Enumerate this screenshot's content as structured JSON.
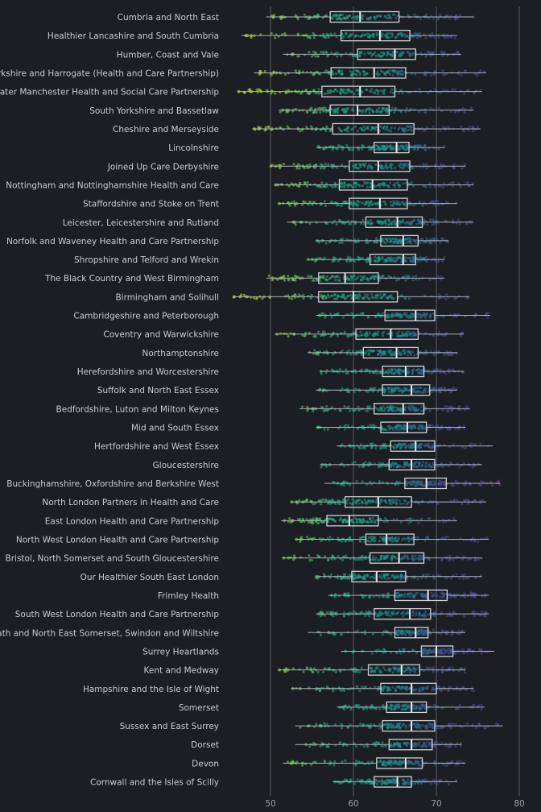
{
  "chart_data": {
    "type": "box",
    "title": "",
    "xlabel": "",
    "ylabel": "",
    "xlim": [
      45,
      81
    ],
    "xticks": [
      50,
      60,
      70,
      80
    ],
    "grid": true,
    "colors": {
      "low": "#d4e21a",
      "mid": "#21a585",
      "high": "#6a3d9a",
      "background": "#1b1e22"
    },
    "categories": [
      "Cumbria and North East",
      "Healthier Lancashire and South Cumbria",
      "Humber, Coast and Vale",
      "West Yorkshire and Harrogate (Health and Care Partnership)",
      "Greater Manchester Health and Social Care Partnership",
      "South Yorkshire and Bassetlaw",
      "Cheshire and Merseyside",
      "Lincolnshire",
      "Joined Up Care Derbyshire",
      "Nottingham and Nottinghamshire Health and Care",
      "Staffordshire and Stoke on Trent",
      "Leicester, Leicestershire and Rutland",
      "Norfolk and Waveney Health and Care Partnership",
      "Shropshire and Telford and Wrekin",
      "The Black Country and West Birmingham",
      "Birmingham and Solihull",
      "Cambridgeshire and Peterborough",
      "Coventry and Warwickshire",
      "Northamptonshire",
      "Herefordshire and Worcestershire",
      "Suffolk and North East Essex",
      "Bedfordshire, Luton and Milton Keynes",
      "Mid and South Essex",
      "Hertfordshire and West Essex",
      "Gloucestershire",
      "Buckinghamshire, Oxfordshire and Berkshire West",
      "North London Partners in Health and Care",
      "East London Health and Care Partnership",
      "North West London Health and Care Partnership",
      "Bristol, North Somerset and South Gloucestershire",
      "Our Healthier South East London",
      "Frimley Health",
      "South West London Health and Care Partnership",
      "Bath and North East Somerset, Swindon and Wiltshire",
      "Surrey Heartlands",
      "Kent and Medway",
      "Hampshire and the Isle of Wight",
      "Somerset",
      "Sussex and East Surrey",
      "Dorset",
      "Devon",
      "Cornwall and the Isles of Scilly"
    ],
    "boxes": [
      {
        "whislo": 49.5,
        "q1": 57.2,
        "med": 60.8,
        "q3": 65.5,
        "whishi": 74.5
      },
      {
        "whislo": 46.5,
        "q1": 58.5,
        "med": 63.2,
        "q3": 66.8,
        "whishi": 72.5
      },
      {
        "whislo": 51.5,
        "q1": 60.5,
        "med": 65.0,
        "q3": 67.5,
        "whishi": 73.0
      },
      {
        "whislo": 48.0,
        "q1": 57.3,
        "med": 62.5,
        "q3": 66.3,
        "whishi": 76.0
      },
      {
        "whislo": 46.0,
        "q1": 56.2,
        "med": 60.8,
        "q3": 65.0,
        "whishi": 75.5
      },
      {
        "whislo": 51.0,
        "q1": 57.2,
        "med": 60.5,
        "q3": 64.3,
        "whishi": 74.5
      },
      {
        "whislo": 47.8,
        "q1": 57.5,
        "med": 63.0,
        "q3": 67.3,
        "whishi": 75.3
      },
      {
        "whislo": 55.5,
        "q1": 62.5,
        "med": 65.2,
        "q3": 66.7,
        "whishi": 71.0
      },
      {
        "whislo": 50.0,
        "q1": 59.5,
        "med": 63.0,
        "q3": 66.8,
        "whishi": 73.5
      },
      {
        "whislo": 50.5,
        "q1": 58.3,
        "med": 62.3,
        "q3": 66.5,
        "whishi": 74.5
      },
      {
        "whislo": 51.0,
        "q1": 59.5,
        "med": 63.2,
        "q3": 66.5,
        "whishi": 72.5
      },
      {
        "whislo": 52.0,
        "q1": 61.5,
        "med": 65.3,
        "q3": 68.3,
        "whishi": 74.5
      },
      {
        "whislo": 55.5,
        "q1": 63.3,
        "med": 66.0,
        "q3": 67.8,
        "whishi": 71.5
      },
      {
        "whislo": 54.5,
        "q1": 62.0,
        "med": 66.0,
        "q3": 67.5,
        "whishi": 71.0
      },
      {
        "whislo": 49.5,
        "q1": 55.8,
        "med": 59.0,
        "q3": 63.0,
        "whishi": 71.0
      },
      {
        "whislo": 45.5,
        "q1": 55.8,
        "med": 60.0,
        "q3": 65.3,
        "whishi": 74.0
      },
      {
        "whislo": 55.5,
        "q1": 63.8,
        "med": 67.5,
        "q3": 69.8,
        "whishi": 76.5
      },
      {
        "whislo": 50.5,
        "q1": 60.3,
        "med": 64.5,
        "q3": 67.8,
        "whishi": 73.3
      },
      {
        "whislo": 54.5,
        "q1": 61.2,
        "med": 65.2,
        "q3": 67.8,
        "whishi": 72.5
      },
      {
        "whislo": 56.0,
        "q1": 63.5,
        "med": 66.3,
        "q3": 68.5,
        "whishi": 73.3
      },
      {
        "whislo": 55.5,
        "q1": 63.5,
        "med": 67.0,
        "q3": 69.2,
        "whishi": 72.5
      },
      {
        "whislo": 53.5,
        "q1": 62.5,
        "med": 66.0,
        "q3": 68.5,
        "whishi": 74.0
      },
      {
        "whislo": 55.5,
        "q1": 63.3,
        "med": 66.5,
        "q3": 68.8,
        "whishi": 73.5
      },
      {
        "whislo": 58.0,
        "q1": 64.5,
        "med": 67.5,
        "q3": 69.8,
        "whishi": 76.8
      },
      {
        "whislo": 56.0,
        "q1": 64.3,
        "med": 67.0,
        "q3": 69.8,
        "whishi": 75.5
      },
      {
        "whislo": 56.5,
        "q1": 66.2,
        "med": 68.8,
        "q3": 71.2,
        "whishi": 77.7
      },
      {
        "whislo": 52.5,
        "q1": 59.0,
        "med": 63.0,
        "q3": 67.0,
        "whishi": 76.0
      },
      {
        "whislo": 51.3,
        "q1": 56.8,
        "med": 59.5,
        "q3": 63.0,
        "whishi": 72.5
      },
      {
        "whislo": 53.0,
        "q1": 61.5,
        "med": 64.0,
        "q3": 67.3,
        "whishi": 76.3
      },
      {
        "whislo": 51.5,
        "q1": 62.0,
        "med": 65.5,
        "q3": 68.5,
        "whishi": 75.5
      },
      {
        "whislo": 55.5,
        "q1": 59.8,
        "med": 62.8,
        "q3": 66.3,
        "whishi": 75.5
      },
      {
        "whislo": 57.0,
        "q1": 65.0,
        "med": 69.0,
        "q3": 71.3,
        "whishi": 76.3
      },
      {
        "whislo": 55.5,
        "q1": 62.5,
        "med": 66.8,
        "q3": 69.3,
        "whishi": 76.3
      },
      {
        "whislo": 54.5,
        "q1": 65.0,
        "med": 67.5,
        "q3": 69.0,
        "whishi": 73.5
      },
      {
        "whislo": 58.5,
        "q1": 68.2,
        "med": 70.0,
        "q3": 72.0,
        "whishi": 77.0
      },
      {
        "whislo": 51.0,
        "q1": 61.8,
        "med": 65.8,
        "q3": 68.0,
        "whishi": 73.5
      },
      {
        "whislo": 52.5,
        "q1": 63.3,
        "med": 67.0,
        "q3": 70.0,
        "whishi": 74.5
      },
      {
        "whislo": 58.0,
        "q1": 64.0,
        "med": 67.0,
        "q3": 68.8,
        "whishi": 75.8
      },
      {
        "whislo": 53.0,
        "q1": 63.5,
        "med": 67.0,
        "q3": 69.8,
        "whishi": 78.0
      },
      {
        "whislo": 53.0,
        "q1": 64.3,
        "med": 67.0,
        "q3": 69.5,
        "whishi": 73.0
      },
      {
        "whislo": 51.5,
        "q1": 62.8,
        "med": 66.3,
        "q3": 68.3,
        "whishi": 73.5
      },
      {
        "whislo": 57.5,
        "q1": 62.5,
        "med": 65.3,
        "q3": 67.0,
        "whishi": 72.5
      }
    ]
  }
}
